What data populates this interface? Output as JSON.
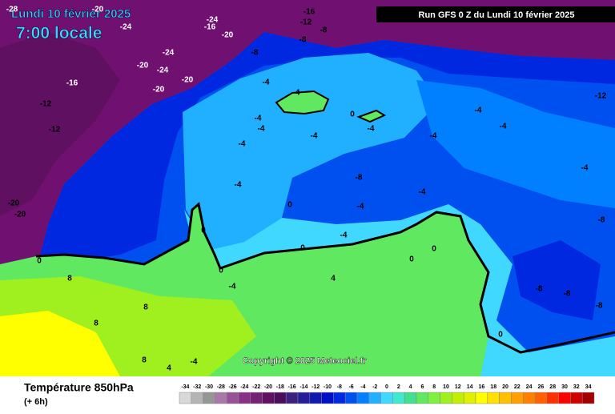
{
  "header": {
    "date": "Lundi 10 février 2025",
    "time": "7:00 locale",
    "run": "Run GFS 0 Z du Lundi 10 février 2025"
  },
  "copyright": "Copyright © 2025 Meteociel.fr",
  "legend": {
    "title": "Température 850hPa",
    "subtitle": "(+ 6h)",
    "ticks": [
      -34,
      -32,
      -30,
      -28,
      -26,
      -24,
      -22,
      -20,
      -18,
      -16,
      -14,
      -12,
      -10,
      -8,
      -6,
      -4,
      -2,
      0,
      2,
      4,
      6,
      8,
      10,
      12,
      14,
      16,
      18,
      20,
      22,
      24,
      26,
      28,
      30,
      32,
      34
    ],
    "colors": [
      "#d8d8d8",
      "#b4b4b4",
      "#969696",
      "#a878a8",
      "#985098",
      "#883088",
      "#742074",
      "#601060",
      "#4c0c5c",
      "#3c2080",
      "#241c98",
      "#1018b0",
      "#0010c8",
      "#0028e0",
      "#0050f0",
      "#0080ff",
      "#20b0ff",
      "#40d8ff",
      "#40e8d0",
      "#40e090",
      "#60e860",
      "#80f040",
      "#a0f020",
      "#c0f000",
      "#e0f000",
      "#ffff00",
      "#ffe000",
      "#ffc000",
      "#ffa000",
      "#ff8000",
      "#ff6000",
      "#ff3000",
      "#ff0000",
      "#d00000",
      "#a00000"
    ]
  },
  "contour_labels": [
    "-28",
    "-20",
    "-24",
    "-24",
    "-16",
    "-16",
    "-12",
    "-8",
    "-20",
    "-24",
    "-20",
    "-24",
    "-20",
    "-20",
    "-16",
    "-12",
    "-12",
    "-20",
    "-20",
    "-8",
    "-8",
    "-4",
    "-4",
    "-4",
    "0",
    "-4",
    "-4",
    "-4",
    "-4",
    "-8",
    "-4",
    "0",
    "-4",
    "-4",
    "0",
    "0",
    "0",
    "-4",
    "4",
    "8",
    "8",
    "8",
    "8",
    "4",
    "-4",
    "-12",
    "-4",
    "-4",
    "-4",
    "-8",
    "-8",
    "-8",
    "-8",
    "0",
    "0",
    "0",
    "-4",
    "-4",
    "0"
  ]
}
